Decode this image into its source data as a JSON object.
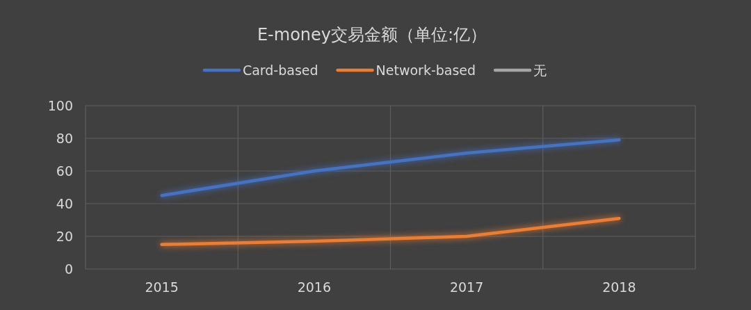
{
  "chart_data": {
    "type": "line",
    "title": "E-money交易金额（单位:亿）",
    "categories": [
      "2015",
      "2016",
      "2017",
      "2018"
    ],
    "series": [
      {
        "name": "Card-based",
        "color": "#4472c4",
        "values": [
          45,
          60,
          71,
          79
        ]
      },
      {
        "name": "Network-based",
        "color": "#ed7d31",
        "values": [
          15,
          17,
          20,
          31
        ]
      },
      {
        "name": "无",
        "color": "#a5a5a5",
        "values": [
          null,
          null,
          null,
          null
        ]
      }
    ],
    "ylim": [
      0,
      100
    ],
    "yticks": [
      0,
      20,
      40,
      60,
      80,
      100
    ],
    "grid": true,
    "legend": "top",
    "line_style": "solid"
  }
}
